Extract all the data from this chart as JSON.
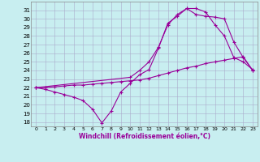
{
  "xlabel": "Windchill (Refroidissement éolien,°C)",
  "background_color": "#c8eef0",
  "grid_color": "#aaaacc",
  "line_color": "#990099",
  "xlim": [
    -0.5,
    23.5
  ],
  "ylim": [
    17.5,
    32
  ],
  "yticks": [
    18,
    19,
    20,
    21,
    22,
    23,
    24,
    25,
    26,
    27,
    28,
    29,
    30,
    31
  ],
  "xticks": [
    0,
    1,
    2,
    3,
    4,
    5,
    6,
    7,
    8,
    9,
    10,
    11,
    12,
    13,
    14,
    15,
    16,
    17,
    18,
    19,
    20,
    21,
    22,
    23
  ],
  "series": [
    {
      "x": [
        0,
        1,
        2,
        3,
        4,
        5,
        6,
        7,
        8,
        9,
        10,
        11,
        12,
        13,
        14,
        15,
        16,
        17,
        18,
        19,
        20,
        21,
        22,
        23
      ],
      "y": [
        22.0,
        21.8,
        21.5,
        21.2,
        20.9,
        20.5,
        19.5,
        17.9,
        19.3,
        21.5,
        22.5,
        23.5,
        24.1,
        26.6,
        29.5,
        30.3,
        31.2,
        31.2,
        30.8,
        29.3,
        28.0,
        25.5,
        25.0,
        24.1
      ]
    },
    {
      "x": [
        0,
        1,
        2,
        3,
        4,
        5,
        6,
        7,
        8,
        9,
        10,
        11,
        12,
        13,
        14,
        15,
        16,
        17,
        18,
        19,
        20,
        21,
        22,
        23
      ],
      "y": [
        22.0,
        22.0,
        22.1,
        22.2,
        22.3,
        22.3,
        22.4,
        22.5,
        22.6,
        22.7,
        22.8,
        22.9,
        23.1,
        23.4,
        23.7,
        24.0,
        24.3,
        24.5,
        24.8,
        25.0,
        25.2,
        25.4,
        25.6,
        24.0
      ]
    },
    {
      "x": [
        0,
        10,
        11,
        12,
        13,
        14,
        15,
        16,
        17,
        18,
        19,
        20,
        21,
        22,
        23
      ],
      "y": [
        22.0,
        23.2,
        24.0,
        25.0,
        26.7,
        29.3,
        30.5,
        31.2,
        30.5,
        30.3,
        30.2,
        30.0,
        27.3,
        25.5,
        24.0
      ]
    }
  ]
}
